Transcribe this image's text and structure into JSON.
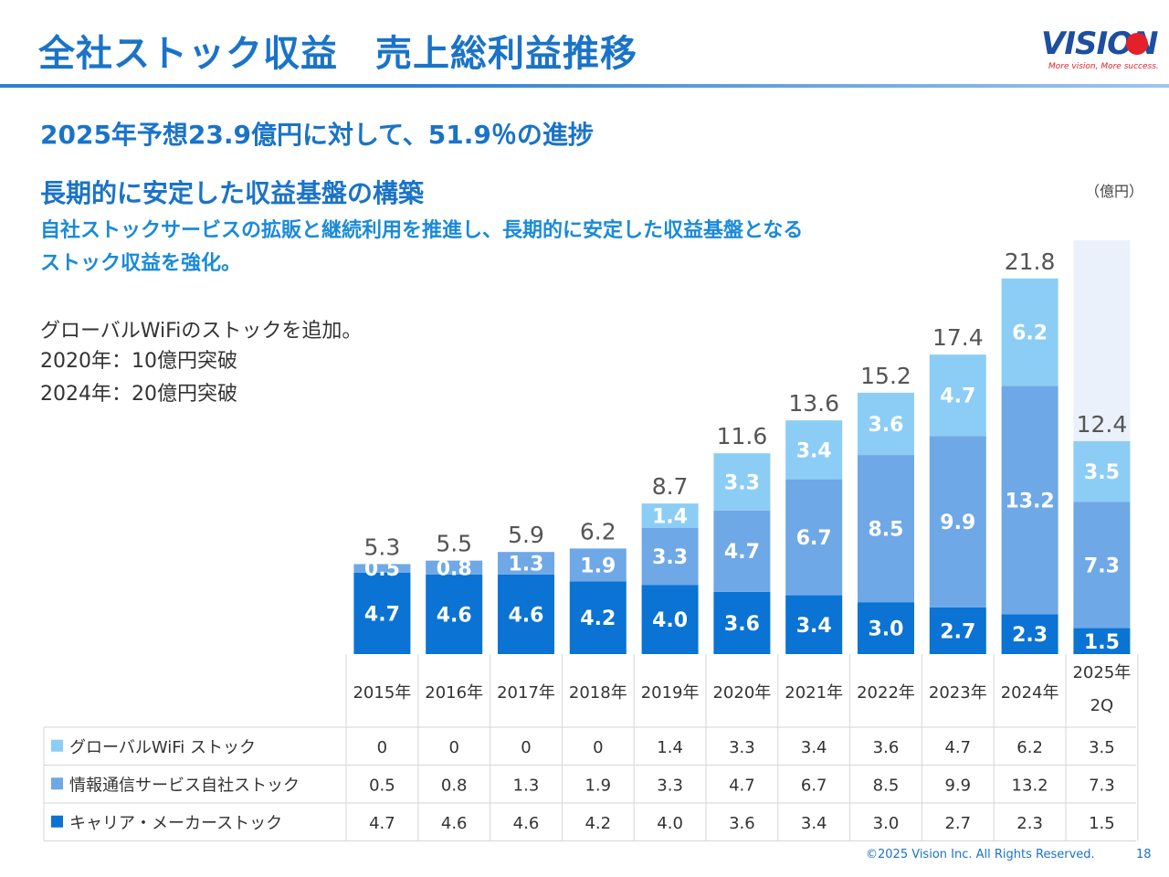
{
  "title": "全社ストック収益　売上総利益推移",
  "logo": {
    "name": "VISION",
    "tagline": "More vision, More success."
  },
  "headline": "2025年予想23.9億円に対して、51.9％の進捗",
  "subheading": "長期的に安定した収益基盤の構築",
  "description": [
    "自社ストックサービスの拡販と継続利用を推進し、長期的に安定した収益基盤となる",
    "ストック収益を強化。"
  ],
  "notes": [
    "グローバルWiFiのストックを追加。",
    "2020年：10億円突破",
    "2024年：20億円突破"
  ],
  "unit_label": "（億円）",
  "colors": {
    "carrier": "#0a73d4",
    "info": "#6fa8e6",
    "wifi": "#8ccdf6",
    "forecast_bg": "#eaf1fb",
    "title": "#1a73c8"
  },
  "chart_data": {
    "type": "bar",
    "stacked": true,
    "categories": [
      "2015年",
      "2016年",
      "2017年",
      "2018年",
      "2019年",
      "2020年",
      "2021年",
      "2022年",
      "2023年",
      "2024年",
      "2025年\n2Q"
    ],
    "series": [
      {
        "name": "キャリア・メーカーストック",
        "values": [
          4.7,
          4.6,
          4.6,
          4.2,
          4.0,
          3.6,
          3.4,
          3.0,
          2.7,
          2.3,
          1.5
        ]
      },
      {
        "name": "情報通信サービス自社ストック",
        "values": [
          0.5,
          0.8,
          1.3,
          1.9,
          3.3,
          4.7,
          6.7,
          8.5,
          9.9,
          13.2,
          7.3
        ]
      },
      {
        "name": "グローバルWiFi ストック",
        "values": [
          0,
          0,
          0,
          0,
          1.4,
          3.3,
          3.4,
          3.6,
          4.7,
          6.2,
          3.5
        ]
      }
    ],
    "totals": [
      5.3,
      5.5,
      5.9,
      6.2,
      8.7,
      11.6,
      13.6,
      15.2,
      17.4,
      21.8,
      12.4
    ],
    "forecast": 23.9
  },
  "table": {
    "row_order": [
      2,
      1,
      0
    ]
  },
  "footer": {
    "copyright": "©2025 Vision Inc. All Rights Reserved.",
    "page": "18"
  }
}
